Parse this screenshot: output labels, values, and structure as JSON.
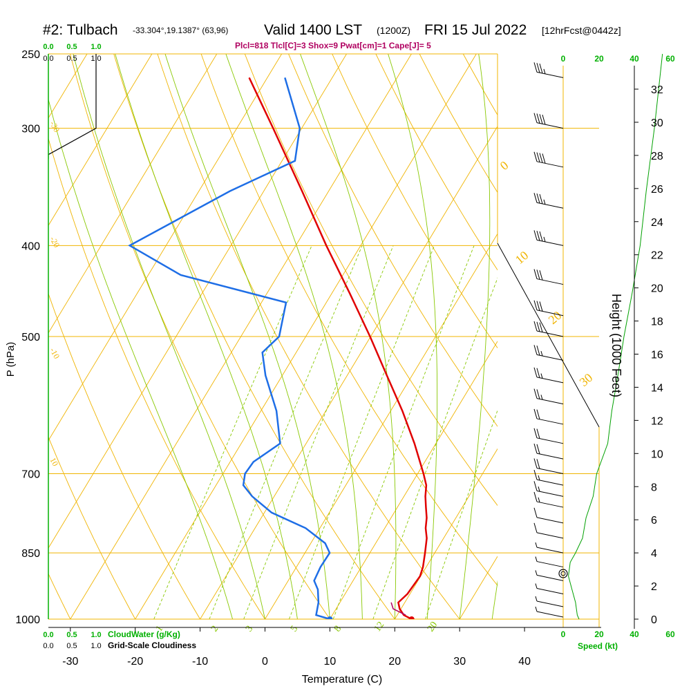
{
  "title": {
    "station": "#2: Tulbach",
    "coords": "-33.304°,19.1387° (63,96)",
    "valid": "Valid 1400 LST",
    "zulu": "(1200Z)",
    "date": "FRI 15 Jul 2022",
    "fcst": "[12hrFcst@0442z]"
  },
  "indices": "Plcl=818 Tlcl[C]=3 Shox=9 Pwat[cm]=1 Cape[J]= 5",
  "legend": {
    "cloudwater_label": "CloudWater (g/Kg)",
    "cloudiness_label": "Grid-Scale Cloudiness",
    "speed_label": "Speed (kt)",
    "scale_ticks": [
      "0.0",
      "0.5",
      "1.0"
    ]
  },
  "colors": {
    "isobar": "#f0b400",
    "dry_adiabat": "#f0b400",
    "moist_adiabat": "#88c800",
    "mixing_ratio": "#88c800",
    "temperature": "#e00000",
    "dewpoint": "#1e6ee6",
    "parcel": "#b00060",
    "green_text": "#00b000",
    "frame": "#000000"
  },
  "chart_data": {
    "type": "line",
    "subtype": "skew-t log-p",
    "xlabel": "Temperature (C)",
    "ylabel": "P (hPa)",
    "ylabel_right": "Height (1000 Feet)",
    "x_ticks": [
      -30,
      -20,
      -10,
      0,
      10,
      20,
      30,
      40
    ],
    "y_ticks_hpa": [
      250,
      300,
      400,
      500,
      700,
      850,
      1000
    ],
    "ylim_hpa": [
      250,
      1000
    ],
    "height_ticks_kft": [
      0,
      2,
      4,
      6,
      8,
      10,
      12,
      14,
      16,
      18,
      20,
      22,
      24,
      26,
      28,
      30,
      32
    ],
    "speed_ticks_kt": [
      0,
      20,
      40,
      60
    ],
    "dry_adiabat_labels": [
      "-30",
      "-20",
      "-10",
      "0",
      "10",
      "10",
      "20",
      "30"
    ],
    "mixing_ratio_labels": [
      "1",
      "2",
      "3",
      "5",
      "8",
      "12",
      "20"
    ],
    "series": [
      {
        "name": "Temperature",
        "p": [
          1000,
          990,
          975,
          960,
          940,
          900,
          880,
          850,
          820,
          800,
          780,
          760,
          740,
          720,
          700,
          650,
          600,
          550,
          500,
          450,
          400,
          350,
          300,
          265
        ],
        "t": [
          22.6,
          21.0,
          19.8,
          19.0,
          19.6,
          19.9,
          19.5,
          18.5,
          17.4,
          16.3,
          15.5,
          14.4,
          13.3,
          12.4,
          10.9,
          6.7,
          1.8,
          -3.9,
          -10.1,
          -17.2,
          -25.3,
          -34.1,
          -44.4,
          -52.8
        ]
      },
      {
        "name": "Dew Point",
        "p": [
          1000,
          990,
          960,
          930,
          910,
          880,
          850,
          830,
          800,
          770,
          740,
          720,
          700,
          680,
          650,
          600,
          550,
          520,
          500,
          460,
          430,
          400,
          350,
          325,
          300,
          265
        ],
        "td": [
          10.0,
          7.5,
          6.7,
          5.4,
          4.0,
          3.7,
          3.8,
          2.2,
          -2.2,
          -8.9,
          -13.4,
          -15.8,
          -16.6,
          -16.4,
          -14.0,
          -17.6,
          -22.6,
          -25.2,
          -24.1,
          -26.2,
          -45.0,
          -55.6,
          -45.2,
          -38.0,
          -40.3,
          -47.3
        ]
      },
      {
        "name": "Parcel",
        "p": [
          990,
          975,
          960
        ],
        "t": [
          21.3,
          18.8,
          17.9
        ]
      }
    ],
    "surface_points": {
      "t": 22.6,
      "td": 10.0,
      "p": 1000
    },
    "cloudiness": {
      "p": [
        250,
        300,
        320
      ],
      "value": [
        1.0,
        1.0,
        0.0
      ]
    },
    "wind_speed_kt": {
      "p": [
        250,
        300,
        350,
        400,
        450,
        500,
        550,
        600,
        650,
        700,
        740,
        780,
        820,
        850,
        870,
        900,
        930,
        960,
        990,
        1000
      ],
      "speed": [
        49,
        45,
        41,
        38,
        34,
        30,
        27,
        24,
        22,
        19,
        17,
        13,
        11,
        7,
        4,
        3,
        5,
        7,
        8,
        9
      ]
    },
    "wind_barbs": [
      {
        "p": 265,
        "spd": 35
      },
      {
        "p": 300,
        "spd": 40
      },
      {
        "p": 330,
        "spd": 40
      },
      {
        "p": 365,
        "spd": 35
      },
      {
        "p": 400,
        "spd": 35
      },
      {
        "p": 440,
        "spd": 30
      },
      {
        "p": 475,
        "spd": 30
      },
      {
        "p": 500,
        "spd": 30
      },
      {
        "p": 530,
        "spd": 25
      },
      {
        "p": 560,
        "spd": 25
      },
      {
        "p": 590,
        "spd": 25
      },
      {
        "p": 620,
        "spd": 20
      },
      {
        "p": 650,
        "spd": 20
      },
      {
        "p": 675,
        "spd": 20
      },
      {
        "p": 700,
        "spd": 20
      },
      {
        "p": 720,
        "spd": 15
      },
      {
        "p": 740,
        "spd": 15
      },
      {
        "p": 760,
        "spd": 15
      },
      {
        "p": 790,
        "spd": 10
      },
      {
        "p": 820,
        "spd": 10
      },
      {
        "p": 850,
        "spd": 5
      },
      {
        "p": 880,
        "spd": 5
      },
      {
        "p": 910,
        "spd": 5
      },
      {
        "p": 940,
        "spd": 5
      },
      {
        "p": 970,
        "spd": 5
      },
      {
        "p": 995,
        "spd": 5
      }
    ]
  }
}
